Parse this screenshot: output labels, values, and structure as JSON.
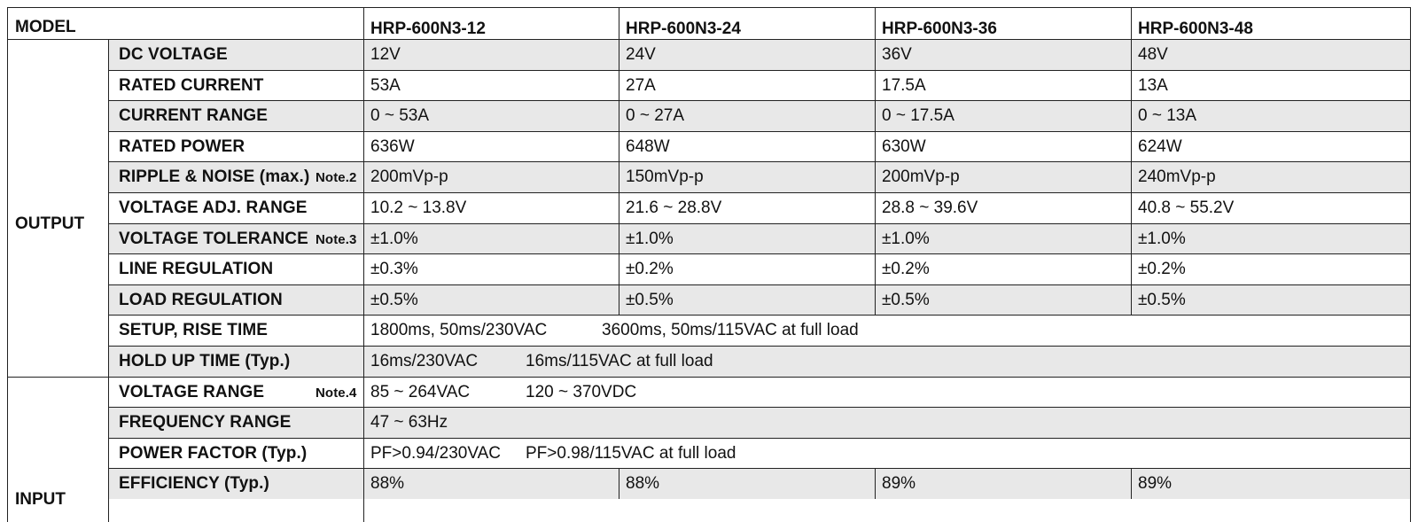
{
  "header": {
    "label": "MODEL",
    "models": [
      "HRP-600N3-12",
      "HRP-600N3-24",
      "HRP-600N3-36",
      "HRP-600N3-48"
    ]
  },
  "sections": [
    {
      "name": "OUTPUT",
      "rows": [
        {
          "label": "DC VOLTAGE",
          "note": "",
          "values": [
            "12V",
            "24V",
            "36V",
            "48V"
          ]
        },
        {
          "label": "RATED CURRENT",
          "note": "",
          "values": [
            "53A",
            "27A",
            "17.5A",
            "13A"
          ]
        },
        {
          "label": "CURRENT RANGE",
          "note": "",
          "values": [
            "0 ~ 53A",
            "0 ~ 27A",
            "0 ~ 17.5A",
            "0 ~ 13A"
          ]
        },
        {
          "label": "RATED POWER",
          "note": "",
          "values": [
            "636W",
            "648W",
            "630W",
            "624W"
          ]
        },
        {
          "label": "RIPPLE & NOISE (max.)",
          "note": "Note.2",
          "values": [
            "200mVp-p",
            "150mVp-p",
            "200mVp-p",
            "240mVp-p"
          ]
        },
        {
          "label": "VOLTAGE ADJ. RANGE",
          "note": "",
          "values": [
            "10.2 ~ 13.8V",
            "21.6 ~ 28.8V",
            "28.8 ~ 39.6V",
            "40.8 ~ 55.2V"
          ]
        },
        {
          "label": "VOLTAGE TOLERANCE",
          "note": "Note.3",
          "values": [
            "±1.0%",
            "±1.0%",
            "±1.0%",
            "±1.0%"
          ]
        },
        {
          "label": "LINE REGULATION",
          "note": "",
          "values": [
            "±0.3%",
            "±0.2%",
            "±0.2%",
            "±0.2%"
          ]
        },
        {
          "label": "LOAD REGULATION",
          "note": "",
          "values": [
            "±0.5%",
            "±0.5%",
            "±0.5%",
            "±0.5%"
          ]
        },
        {
          "label": "SETUP, RISE TIME",
          "note": "",
          "span": [
            "1800ms, 50ms/230VAC",
            "3600ms, 50ms/115VAC at full load"
          ]
        },
        {
          "label": "HOLD UP TIME (Typ.)",
          "note": "",
          "span": [
            "16ms/230VAC",
            "16ms/115VAC at full load"
          ]
        }
      ]
    },
    {
      "name": "INPUT",
      "rows": [
        {
          "label": "VOLTAGE RANGE",
          "note": "Note.4",
          "span": [
            "85 ~ 264VAC",
            "120 ~ 370VDC"
          ]
        },
        {
          "label": "FREQUENCY RANGE",
          "note": "",
          "span": [
            "47 ~ 63Hz",
            ""
          ]
        },
        {
          "label": "POWER FACTOR (Typ.)",
          "note": "",
          "span": [
            "PF>0.94/230VAC",
            "PF>0.98/115VAC at full load"
          ]
        },
        {
          "label": "EFFICIENCY (Typ.)",
          "note": "",
          "values": [
            "88%",
            "88%",
            "89%",
            "89%"
          ]
        }
      ]
    }
  ]
}
